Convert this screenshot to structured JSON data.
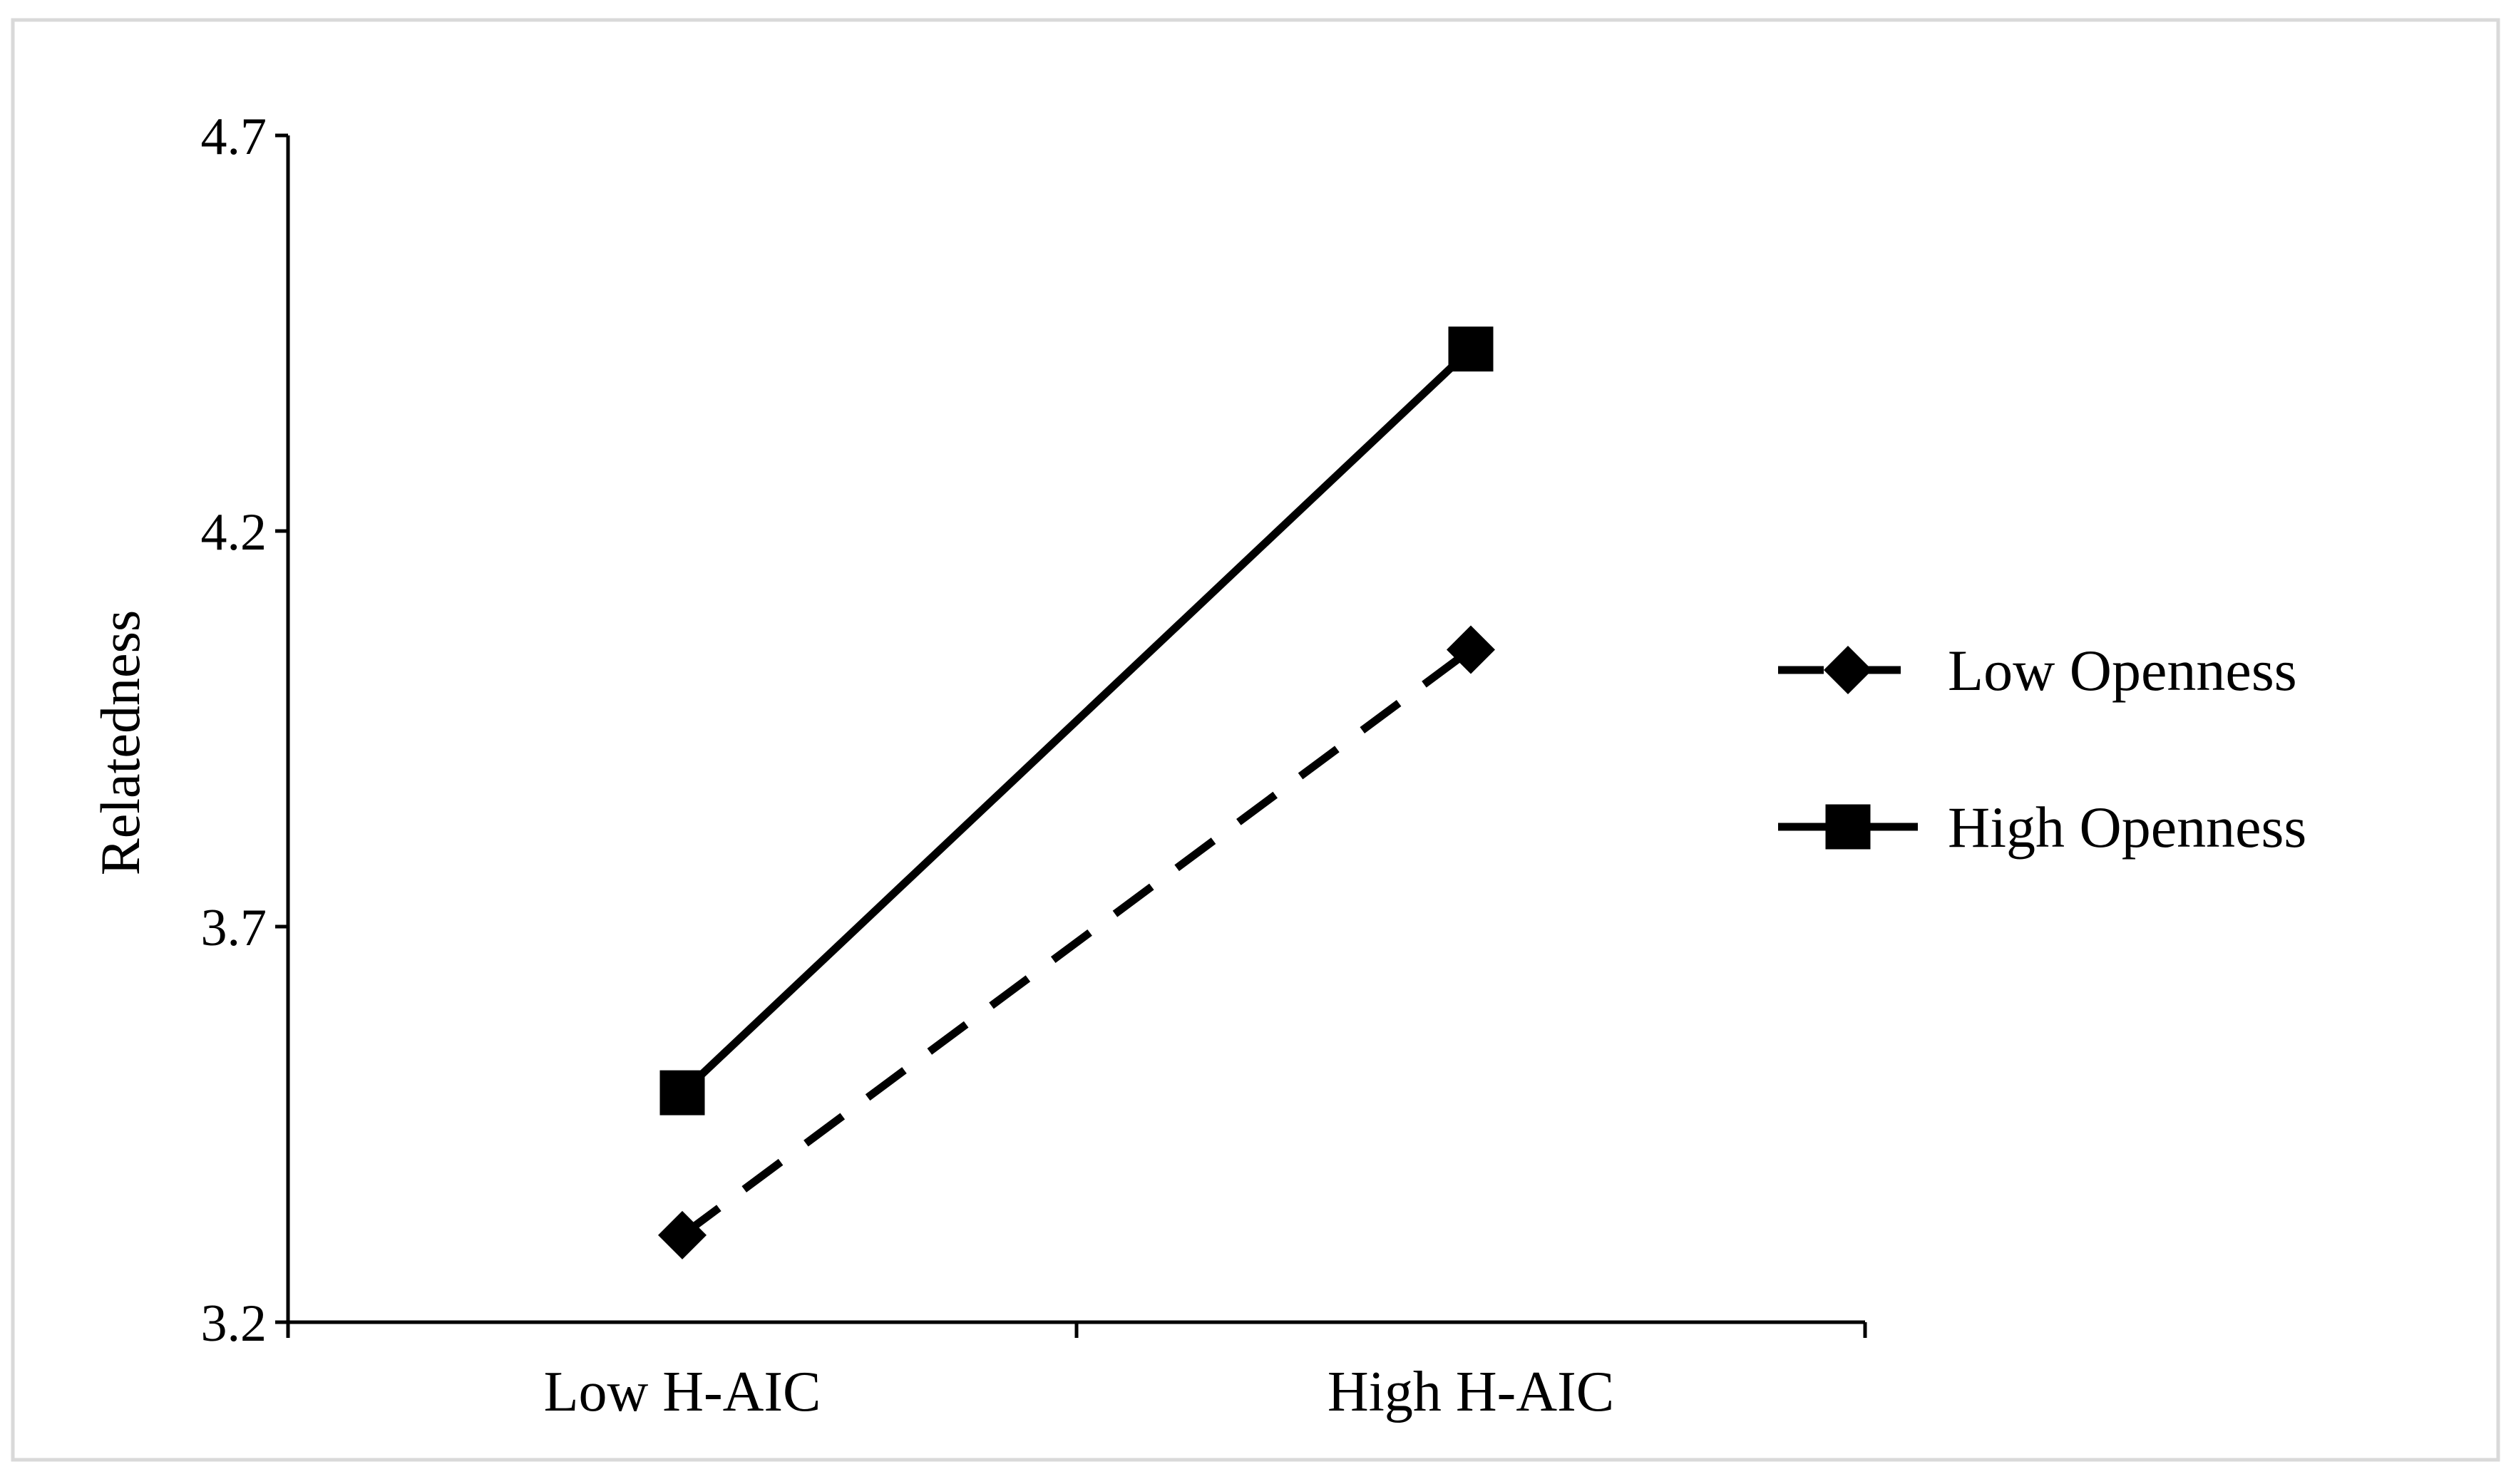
{
  "chart_data": {
    "type": "line",
    "title": "",
    "xlabel": "",
    "ylabel": "Relatedness",
    "categories": [
      "Low H-AIC",
      "High H-AIC"
    ],
    "ylim": [
      3.2,
      4.7
    ],
    "yticks": [
      "3.2",
      "3.7",
      "4.2",
      "4.7"
    ],
    "grid": false,
    "legend": "right",
    "series": [
      {
        "name": "Low Openness",
        "values": [
          3.31,
          4.05
        ],
        "marker": "diamond",
        "line_style": "dashed",
        "color": "#000000"
      },
      {
        "name": "High Openness",
        "values": [
          3.49,
          4.43
        ],
        "marker": "square",
        "line_style": "solid",
        "color": "#000000"
      }
    ]
  },
  "colors": {
    "frame": "#d9d9d9",
    "ink": "#000000",
    "background": "#ffffff"
  }
}
